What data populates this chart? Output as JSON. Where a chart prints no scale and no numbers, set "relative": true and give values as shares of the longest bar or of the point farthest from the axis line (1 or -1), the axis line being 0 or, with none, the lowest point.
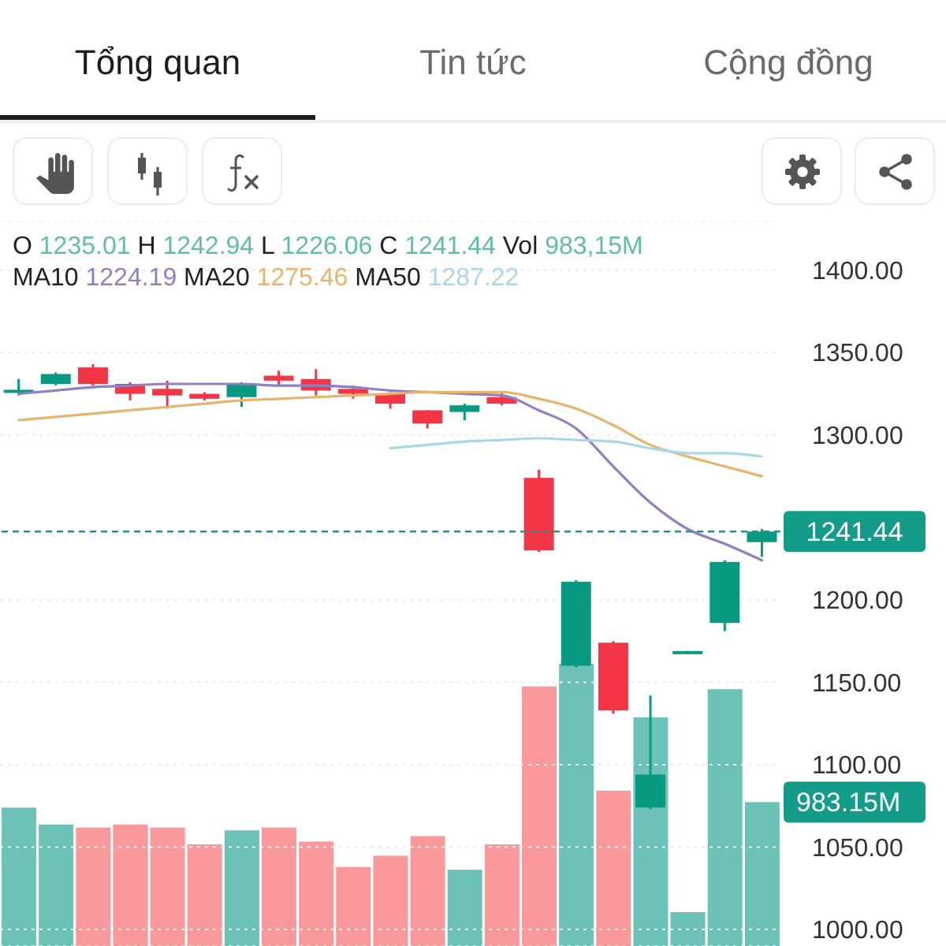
{
  "chart_data": [
    {
      "type": "candlestick",
      "categories": [
        null,
        null,
        null,
        null,
        null,
        null,
        null,
        null,
        null,
        null,
        null,
        null,
        null,
        null,
        null,
        null,
        null,
        null,
        null,
        null,
        null
      ],
      "ohlc": [
        [
          1326,
          1334,
          1324,
          1327
        ],
        [
          1331,
          1338,
          1330,
          1337
        ],
        [
          1341,
          1343,
          1330,
          1331
        ],
        [
          1331,
          1332,
          1321,
          1325
        ],
        [
          1328,
          1333,
          1316,
          1324
        ],
        [
          1325,
          1326,
          1321,
          1322
        ],
        [
          1323,
          1332,
          1317,
          1331
        ],
        [
          1336,
          1339,
          1330,
          1333
        ],
        [
          1334,
          1340,
          1324,
          1327
        ],
        [
          1328,
          1330,
          1322,
          1325
        ],
        [
          1325,
          1326,
          1316,
          1319
        ],
        [
          1315,
          1315,
          1304,
          1307
        ],
        [
          1314,
          1319,
          1309,
          1318
        ],
        [
          1323,
          1326,
          1318,
          1319
        ],
        [
          1274,
          1279,
          1229,
          1230
        ],
        [
          1160,
          1212,
          1159,
          1211
        ],
        [
          1174,
          1175,
          1131,
          1133
        ],
        [
          1074,
          1142,
          1073,
          1094
        ],
        [
          1168,
          1169,
          1167,
          1168
        ],
        [
          1186,
          1224,
          1181,
          1223
        ],
        [
          1235.01,
          1242.94,
          1226.06,
          1241.44
        ]
      ],
      "colors": [
        "#089981",
        "#089981",
        "#f23645",
        "#f23645",
        "#f23645",
        "#f23645",
        "#089981",
        "#f23645",
        "#f23645",
        "#f23645",
        "#f23645",
        "#f23645",
        "#089981",
        "#f23645",
        "#f23645",
        "#089981",
        "#f23645",
        "#089981",
        "#089981",
        "#089981",
        "#089981"
      ],
      "series": [
        {
          "type": "line",
          "color": "#8f7fc4",
          "values": [
            1325,
            1327,
            1329,
            1330,
            1331,
            1331,
            1331,
            1330,
            1330,
            1329,
            1327,
            1326,
            1325,
            1324,
            1315,
            1304,
            1281,
            1259,
            1243,
            1234,
            1224
          ]
        },
        {
          "type": "line",
          "color": "#e8b46c",
          "values": [
            1309,
            1311,
            1313,
            1315,
            1317,
            1319,
            1321,
            1322,
            1323,
            1324,
            1325,
            1326,
            1326,
            1326,
            1322,
            1316,
            1306,
            1294,
            1287,
            1281,
            1275
          ]
        },
        {
          "type": "line",
          "color": "#a9d7ea",
          "values": [
            null,
            null,
            null,
            null,
            null,
            null,
            null,
            null,
            null,
            null,
            1292,
            1294,
            1296,
            1297,
            1298,
            1297,
            1296,
            1292,
            1289,
            1289,
            1287
          ]
        }
      ],
      "ylim": [
        990,
        1430
      ],
      "yticks": [
        {
          "value": 1000,
          "label": "1000.00"
        },
        {
          "value": 1050,
          "label": "1050.00"
        },
        {
          "value": 1100,
          "label": "1100.00"
        },
        {
          "value": 1150,
          "label": "1150.00"
        },
        {
          "value": 1200,
          "label": "1200.00"
        },
        {
          "value": 1300,
          "label": "1300.00"
        },
        {
          "value": 1350,
          "label": "1350.00"
        },
        {
          "value": 1400,
          "label": "1400.00"
        }
      ],
      "grid": "y",
      "ref_lines": [
        {
          "axis": "y",
          "value": 1241.44,
          "label": "1241.44",
          "color": "#139c89",
          "line_style": "dashed"
        }
      ],
      "annotations": [
        "Tổng quan",
        "Tin tức",
        "Cộng đồng",
        "O 1235.01 H 1242.94 L 1226.06 C 1241.44 Vol 983,15M",
        "MA10 1224.19 MA20 1275.46 MA50 1287.22"
      ]
    },
    {
      "type": "bar",
      "relative": true,
      "categories": [
        null,
        null,
        null,
        null,
        null,
        null,
        null,
        null,
        null,
        null,
        null,
        null,
        null,
        null,
        null,
        null,
        null,
        null,
        null,
        null,
        null
      ],
      "values": [
        0.49,
        0.43,
        0.42,
        0.43,
        0.42,
        0.36,
        0.41,
        0.42,
        0.37,
        0.28,
        0.32,
        0.39,
        0.27,
        0.36,
        0.92,
        1,
        0.55,
        0.81,
        0.12,
        0.91,
        0.51
      ],
      "colors": [
        "#6cc2b6",
        "#6cc2b6",
        "#f9999b",
        "#f9999b",
        "#f9999b",
        "#f9999b",
        "#6cc2b6",
        "#f9999b",
        "#f9999b",
        "#f9999b",
        "#f9999b",
        "#f9999b",
        "#6cc2b6",
        "#f9999b",
        "#f9999b",
        "#6cc2b6",
        "#f9999b",
        "#6cc2b6",
        "#6cc2b6",
        "#6cc2b6",
        "#6cc2b6"
      ],
      "annotations": [
        "983.15M"
      ]
    }
  ]
}
